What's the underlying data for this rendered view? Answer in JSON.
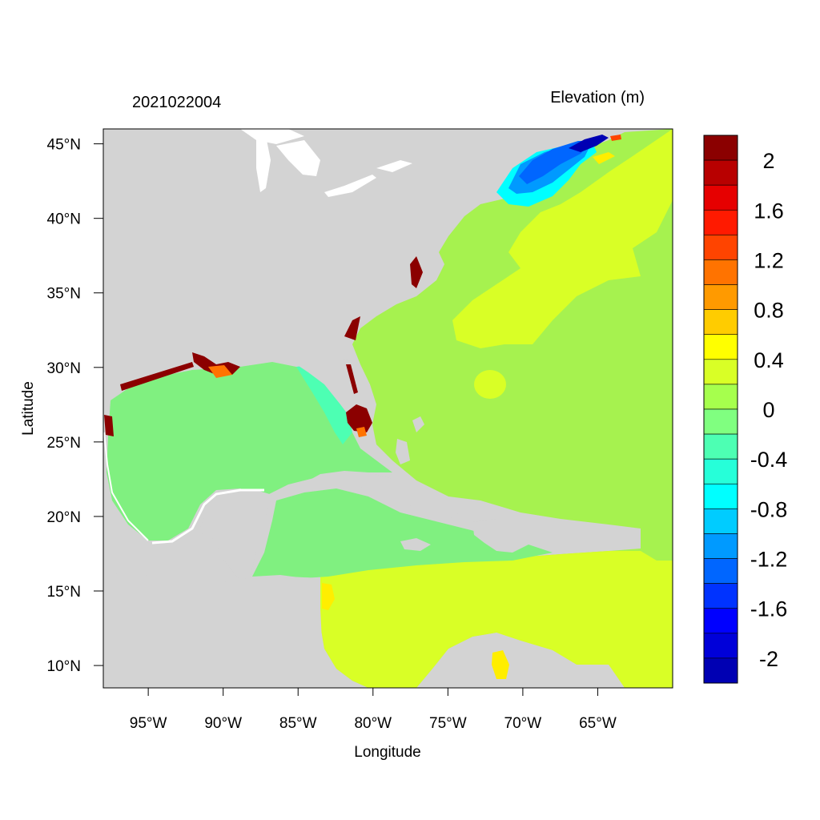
{
  "header": {
    "timestamp": "2021022004",
    "variable_title": "Elevation (m)"
  },
  "map": {
    "x_axis_label": "Longitude",
    "y_axis_label": "Latitude",
    "lon_range": [
      -98,
      -60
    ],
    "lat_range": [
      8.5,
      46
    ],
    "lon_ticks": [
      {
        "value": -95,
        "label": "95°W"
      },
      {
        "value": -90,
        "label": "90°W"
      },
      {
        "value": -85,
        "label": "85°W"
      },
      {
        "value": -80,
        "label": "80°W"
      },
      {
        "value": -75,
        "label": "75°W"
      },
      {
        "value": -70,
        "label": "70°W"
      },
      {
        "value": -65,
        "label": "65°W"
      }
    ],
    "lat_ticks": [
      {
        "value": 45,
        "label": "45°N"
      },
      {
        "value": 40,
        "label": "40°N"
      },
      {
        "value": 35,
        "label": "35°N"
      },
      {
        "value": 30,
        "label": "30°N"
      },
      {
        "value": 25,
        "label": "25°N"
      },
      {
        "value": 20,
        "label": "20°N"
      },
      {
        "value": 15,
        "label": "15°N"
      },
      {
        "value": 10,
        "label": "10°N"
      }
    ],
    "colors": {
      "land": "#d3d3d3",
      "water_base": "#a6f24f"
    }
  },
  "colorbar": {
    "levels": [
      2.2,
      2.0,
      1.8,
      1.6,
      1.4,
      1.2,
      1.0,
      0.8,
      0.6,
      0.4,
      0.2,
      0.0,
      -0.2,
      -0.4,
      -0.6,
      -0.8,
      -1.0,
      -1.2,
      -1.4,
      -1.6,
      -1.8,
      -2.0,
      -2.2
    ],
    "colors": [
      "#8b0000",
      "#b80000",
      "#e60000",
      "#ff1a00",
      "#ff4400",
      "#ff7300",
      "#ff9a00",
      "#ffcc00",
      "#ffff00",
      "#d9ff26",
      "#a6ff4d",
      "#80ff80",
      "#4dffb3",
      "#26ffd9",
      "#00ffff",
      "#00ccff",
      "#009aff",
      "#0066ff",
      "#0033ff",
      "#0000ff",
      "#0000d9",
      "#0000b3"
    ],
    "labels": [
      "2",
      "1.6",
      "1.2",
      "0.8",
      "0.4",
      "0",
      "-0.4",
      "-0.8",
      "-1.2",
      "-1.6",
      "-2"
    ]
  }
}
